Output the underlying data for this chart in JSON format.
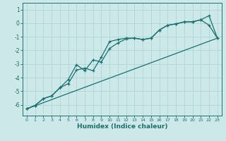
{
  "xlabel": "Humidex (Indice chaleur)",
  "ylabel": "",
  "xlim": [
    -0.5,
    23.5
  ],
  "ylim": [
    -6.8,
    1.5
  ],
  "yticks": [
    1,
    0,
    -1,
    -2,
    -3,
    -4,
    -5,
    -6
  ],
  "xticks": [
    0,
    1,
    2,
    3,
    4,
    5,
    6,
    7,
    8,
    9,
    10,
    11,
    12,
    13,
    14,
    15,
    16,
    17,
    18,
    19,
    20,
    21,
    22,
    23
  ],
  "bg_color": "#cce8e8",
  "grid_color": "#b0d4d4",
  "line_color": "#1a7070",
  "line1_x": [
    0,
    1,
    2,
    3,
    4,
    5,
    6,
    7,
    8,
    9,
    10,
    11,
    12,
    13,
    14,
    15,
    16,
    17,
    18,
    19,
    20,
    21,
    22,
    23
  ],
  "line1_y": [
    -6.3,
    -6.05,
    -5.55,
    -5.35,
    -4.75,
    -4.45,
    -3.45,
    -3.3,
    -3.5,
    -2.5,
    -1.35,
    -1.2,
    -1.1,
    -1.1,
    -1.2,
    -1.1,
    -0.5,
    -0.15,
    -0.05,
    0.1,
    0.1,
    0.25,
    -0.15,
    -1.1
  ],
  "line2_x": [
    0,
    1,
    2,
    3,
    4,
    5,
    6,
    7,
    8,
    9,
    10,
    11,
    12,
    13,
    14,
    15,
    16,
    17,
    18,
    19,
    20,
    21,
    22,
    23
  ],
  "line2_y": [
    -6.3,
    -6.05,
    -5.55,
    -5.35,
    -4.75,
    -4.15,
    -3.05,
    -3.5,
    -2.7,
    -2.85,
    -1.85,
    -1.45,
    -1.15,
    -1.1,
    -1.2,
    -1.1,
    -0.5,
    -0.15,
    -0.05,
    0.1,
    0.1,
    0.25,
    0.55,
    -1.1
  ],
  "line3_x": [
    0,
    23
  ],
  "line3_y": [
    -6.3,
    -1.1
  ]
}
